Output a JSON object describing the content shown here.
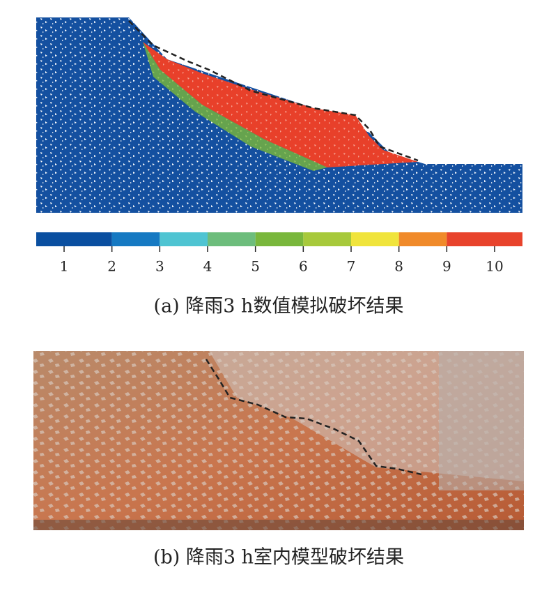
{
  "panel_a": {
    "caption": "(a) 降雨3 h数值模拟破坏结果",
    "colorbar": {
      "ticks": [
        1,
        2,
        3,
        4,
        5,
        6,
        7,
        8,
        9,
        10
      ],
      "colors": [
        "#0a4fa0",
        "#1679c2",
        "#4fc4d2",
        "#6dbd7c",
        "#79b73c",
        "#a7c93b",
        "#f0e43c",
        "#f08a2a",
        "#e8432c"
      ]
    }
  },
  "panel_b": {
    "caption": "(b) 降雨3 h室内模型破坏结果"
  }
}
